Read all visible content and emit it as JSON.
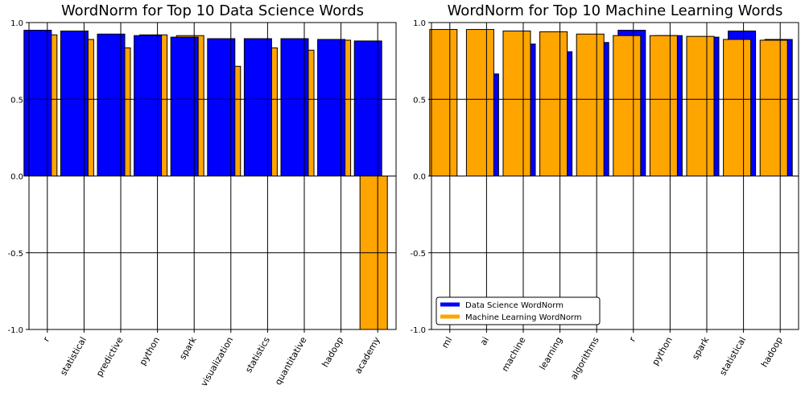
{
  "chart_data": [
    {
      "type": "bar",
      "title": "WordNorm for Top 10 Data Science Words",
      "categories": [
        "r",
        "statistical",
        "predictive",
        "python",
        "spark",
        "visualization",
        "statistics",
        "quantitative",
        "hadoop",
        "academy"
      ],
      "series": [
        {
          "name": "Data Science WordNorm",
          "color": "#0000ff",
          "values": [
            0.95,
            0.945,
            0.925,
            0.915,
            0.905,
            0.895,
            0.895,
            0.895,
            0.89,
            0.88
          ]
        },
        {
          "name": "Machine Learning WordNorm",
          "color": "#ffa500",
          "values": [
            0.92,
            0.89,
            0.835,
            0.92,
            0.915,
            0.715,
            0.835,
            0.82,
            0.885,
            -1.0
          ]
        }
      ],
      "ylim": [
        -1.0,
        1.0
      ],
      "yticks": [
        "1.0",
        "0.5",
        "0.0",
        "-0.5",
        "-1.0"
      ],
      "grid": true
    },
    {
      "type": "bar",
      "title": "WordNorm for Top 10 Machine Learning Words",
      "categories": [
        "ml",
        "ai",
        "machine",
        "learning",
        "algorithms",
        "r",
        "python",
        "spark",
        "statistical",
        "hadoop"
      ],
      "series": [
        {
          "name": "Data Science WordNorm",
          "color": "#0000ff",
          "values": [
            0.0,
            0.665,
            0.86,
            0.81,
            0.87,
            0.95,
            0.915,
            0.905,
            0.945,
            0.89
          ]
        },
        {
          "name": "Machine Learning WordNorm",
          "color": "#ffa500",
          "values": [
            0.955,
            0.955,
            0.945,
            0.94,
            0.925,
            0.915,
            0.915,
            0.91,
            0.89,
            0.885
          ]
        }
      ],
      "ylim": [
        -1.0,
        1.0
      ],
      "yticks": [
        "1.0",
        "0.5",
        "0.0",
        "-0.5",
        "-1.0"
      ],
      "grid": true,
      "legend": {
        "placement": "lower-left",
        "entries": [
          "Data Science WordNorm",
          "Machine Learning WordNorm"
        ]
      }
    }
  ]
}
